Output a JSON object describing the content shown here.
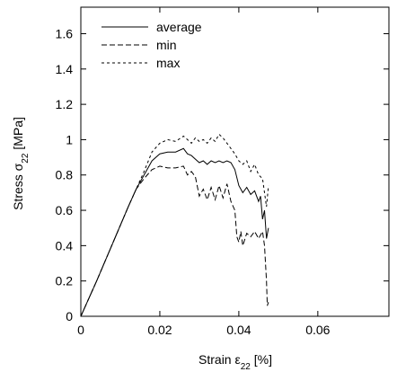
{
  "chart_data": {
    "type": "line",
    "xlabel": {
      "main": "Strain ",
      "symbol": "ε",
      "sub": "22",
      "unit": " [%]"
    },
    "ylabel": {
      "main": "Stress ",
      "symbol": "σ",
      "sub": "22",
      "unit": " [MPa]"
    },
    "xlim": [
      0,
      0.078
    ],
    "ylim": [
      0,
      1.75
    ],
    "xticks": [
      0,
      0.02,
      0.04,
      0.06
    ],
    "xtick_labels": [
      "0",
      "0.02",
      "0.04",
      "0.06"
    ],
    "yticks": [
      0,
      0.2,
      0.4,
      0.6,
      0.8,
      1,
      1.2,
      1.4,
      1.6
    ],
    "ytick_labels": [
      "0",
      "0.2",
      "0.4",
      "0.6",
      "0.8",
      "1",
      "1.2",
      "1.4",
      "1.6"
    ],
    "grid": false,
    "legend_position": "top-left",
    "series": [
      {
        "name": "average",
        "style": "solid",
        "points": [
          [
            0,
            0
          ],
          [
            0.004,
            0.2
          ],
          [
            0.008,
            0.41
          ],
          [
            0.012,
            0.62
          ],
          [
            0.014,
            0.72
          ],
          [
            0.016,
            0.8
          ],
          [
            0.018,
            0.88
          ],
          [
            0.02,
            0.92
          ],
          [
            0.022,
            0.93
          ],
          [
            0.024,
            0.93
          ],
          [
            0.026,
            0.95
          ],
          [
            0.027,
            0.92
          ],
          [
            0.028,
            0.91
          ],
          [
            0.029,
            0.89
          ],
          [
            0.03,
            0.87
          ],
          [
            0.031,
            0.88
          ],
          [
            0.032,
            0.86
          ],
          [
            0.033,
            0.88
          ],
          [
            0.034,
            0.87
          ],
          [
            0.035,
            0.88
          ],
          [
            0.036,
            0.87
          ],
          [
            0.037,
            0.88
          ],
          [
            0.038,
            0.87
          ],
          [
            0.039,
            0.83
          ],
          [
            0.04,
            0.74
          ],
          [
            0.041,
            0.7
          ],
          [
            0.042,
            0.73
          ],
          [
            0.043,
            0.69
          ],
          [
            0.044,
            0.71
          ],
          [
            0.045,
            0.65
          ],
          [
            0.0455,
            0.68
          ],
          [
            0.046,
            0.55
          ],
          [
            0.0465,
            0.6
          ],
          [
            0.047,
            0.44
          ],
          [
            0.0475,
            0.5
          ]
        ]
      },
      {
        "name": "min",
        "style": "dashed",
        "points": [
          [
            0,
            0
          ],
          [
            0.004,
            0.2
          ],
          [
            0.008,
            0.41
          ],
          [
            0.012,
            0.62
          ],
          [
            0.014,
            0.72
          ],
          [
            0.016,
            0.78
          ],
          [
            0.018,
            0.83
          ],
          [
            0.02,
            0.85
          ],
          [
            0.022,
            0.84
          ],
          [
            0.024,
            0.84
          ],
          [
            0.026,
            0.85
          ],
          [
            0.027,
            0.8
          ],
          [
            0.028,
            0.82
          ],
          [
            0.029,
            0.79
          ],
          [
            0.03,
            0.68
          ],
          [
            0.031,
            0.72
          ],
          [
            0.032,
            0.66
          ],
          [
            0.033,
            0.73
          ],
          [
            0.034,
            0.66
          ],
          [
            0.035,
            0.74
          ],
          [
            0.036,
            0.67
          ],
          [
            0.037,
            0.75
          ],
          [
            0.038,
            0.65
          ],
          [
            0.039,
            0.6
          ],
          [
            0.0395,
            0.45
          ],
          [
            0.04,
            0.42
          ],
          [
            0.0405,
            0.48
          ],
          [
            0.041,
            0.4
          ],
          [
            0.042,
            0.47
          ],
          [
            0.043,
            0.45
          ],
          [
            0.044,
            0.48
          ],
          [
            0.045,
            0.44
          ],
          [
            0.046,
            0.48
          ],
          [
            0.0465,
            0.4
          ],
          [
            0.047,
            0.2
          ],
          [
            0.0472,
            0.06
          ],
          [
            0.0475,
            0.08
          ]
        ]
      },
      {
        "name": "max",
        "style": "dotted",
        "points": [
          [
            0,
            0
          ],
          [
            0.004,
            0.2
          ],
          [
            0.008,
            0.41
          ],
          [
            0.012,
            0.62
          ],
          [
            0.014,
            0.72
          ],
          [
            0.016,
            0.82
          ],
          [
            0.018,
            0.93
          ],
          [
            0.02,
            0.98
          ],
          [
            0.022,
            1.0
          ],
          [
            0.024,
            0.99
          ],
          [
            0.026,
            1.02
          ],
          [
            0.027,
            1.0
          ],
          [
            0.028,
            0.98
          ],
          [
            0.029,
            1.01
          ],
          [
            0.03,
            0.99
          ],
          [
            0.031,
            1.0
          ],
          [
            0.032,
            0.98
          ],
          [
            0.033,
            1.01
          ],
          [
            0.034,
            0.99
          ],
          [
            0.035,
            1.03
          ],
          [
            0.036,
            1.01
          ],
          [
            0.037,
            0.98
          ],
          [
            0.038,
            0.95
          ],
          [
            0.039,
            0.92
          ],
          [
            0.04,
            0.88
          ],
          [
            0.041,
            0.86
          ],
          [
            0.042,
            0.88
          ],
          [
            0.043,
            0.82
          ],
          [
            0.044,
            0.86
          ],
          [
            0.045,
            0.8
          ],
          [
            0.046,
            0.78
          ],
          [
            0.0465,
            0.7
          ],
          [
            0.047,
            0.62
          ],
          [
            0.0475,
            0.74
          ]
        ]
      }
    ]
  }
}
